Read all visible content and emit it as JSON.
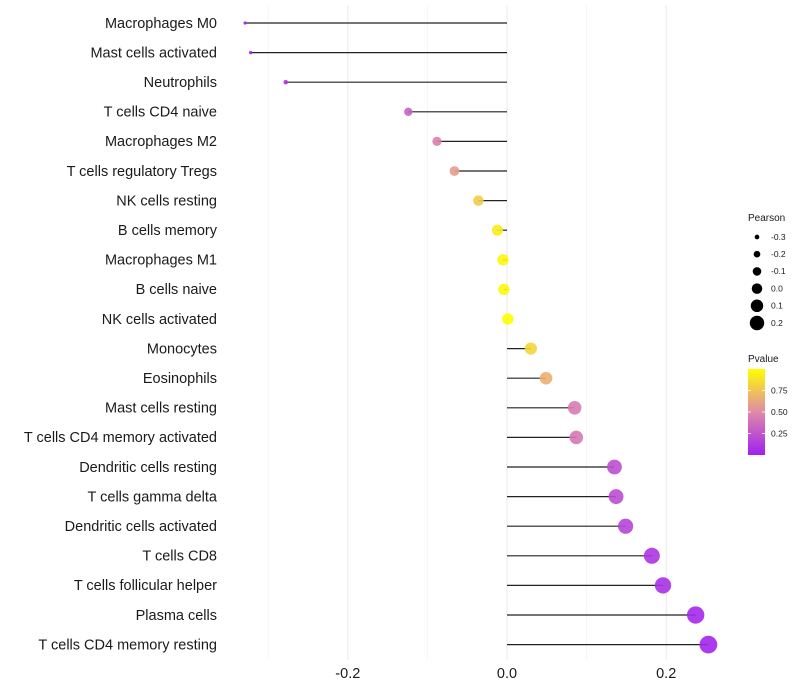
{
  "chart_data": {
    "type": "lollipop",
    "title": "",
    "xlabel": "",
    "ylabel": "",
    "xlim": [
      -0.345,
      0.28
    ],
    "x_ticks": [
      -0.2,
      0.0,
      0.2
    ],
    "x_tick_labels": [
      "-0.2",
      "0.0",
      "0.2"
    ],
    "grid": true,
    "categories": [
      "Macrophages M0",
      "Mast cells activated",
      "Neutrophils",
      "T cells CD4 naive",
      "Macrophages M2",
      "T cells regulatory  Tregs",
      "NK cells resting",
      "B cells memory",
      "Macrophages M1",
      "B cells naive",
      "NK cells activated",
      "Monocytes",
      "Eosinophils",
      "Mast cells resting",
      "T cells CD4 memory activated",
      "Dendritic cells resting",
      "T cells gamma delta",
      "Dendritic cells activated",
      "T cells CD8",
      "T cells follicular helper",
      "Plasma cells",
      "T cells CD4 memory resting"
    ],
    "pearson": [
      -0.329,
      -0.322,
      -0.278,
      -0.124,
      -0.088,
      -0.066,
      -0.036,
      -0.012,
      -0.005,
      -0.004,
      0.001,
      0.03,
      0.049,
      0.085,
      0.087,
      0.135,
      0.137,
      0.149,
      0.182,
      0.196,
      0.237,
      0.253
    ],
    "pvalue": [
      0.02,
      0.03,
      0.06,
      0.3,
      0.45,
      0.58,
      0.78,
      0.92,
      0.96,
      0.97,
      0.99,
      0.82,
      0.66,
      0.43,
      0.42,
      0.22,
      0.21,
      0.18,
      0.1,
      0.08,
      0.04,
      0.03
    ],
    "legend": {
      "size": {
        "title": "Pearson",
        "values": [
          -0.3,
          -0.2,
          -0.1,
          0.0,
          0.1,
          0.2
        ],
        "labels": [
          "-0.3",
          "-0.2",
          "-0.1",
          "0.0",
          "0.1",
          "0.2"
        ]
      },
      "color": {
        "title": "Pvalue",
        "range": [
          0,
          1
        ],
        "ticks": [
          0.25,
          0.5,
          0.75
        ],
        "tick_labels": [
          "0.25",
          "0.50",
          "0.75"
        ],
        "low_color": "#A020F0",
        "high_color": "#FFFF00"
      },
      "placement": "right"
    }
  }
}
